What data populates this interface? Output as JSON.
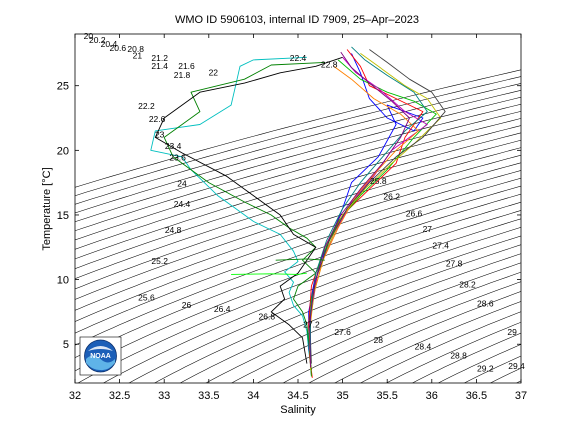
{
  "chart_data": {
    "type": "line",
    "title": "WMO ID 5906103, internal ID 7909, 25–Apr–2023",
    "xlabel": "Salinity",
    "ylabel": "Temperature [°C]",
    "xlim": [
      32,
      37
    ],
    "ylim": [
      2,
      29
    ],
    "xticks": [
      32,
      32.5,
      33,
      33.5,
      34,
      34.5,
      35,
      35.5,
      36,
      36.5,
      37
    ],
    "xtick_labels": [
      "32",
      "32.5",
      "33",
      "33.5",
      "34",
      "34.5",
      "35",
      "35.5",
      "36",
      "36.5",
      "37"
    ],
    "yticks": [
      5,
      10,
      15,
      20,
      25
    ],
    "ytick_labels": [
      "5",
      "10",
      "15",
      "20",
      "25"
    ],
    "grid": false,
    "density_contours": {
      "levels": [
        20,
        20.2,
        20.4,
        20.6,
        20.8,
        21,
        21.2,
        21.4,
        21.6,
        21.8,
        22,
        22.2,
        22.4,
        22.6,
        22.8,
        23,
        23.2,
        23.4,
        23.6,
        23.8,
        24,
        24.2,
        24.4,
        24.6,
        24.8,
        25,
        25.2,
        25.4,
        25.6,
        25.8,
        26,
        26.2,
        26.4,
        26.6,
        26.8,
        27,
        27.2,
        27.4,
        27.6,
        27.8,
        28,
        28.2,
        28.4,
        28.6,
        28.8,
        29,
        29.2,
        29.4
      ],
      "labels": [
        {
          "text": "20",
          "s": 32.15,
          "t": 28.6
        },
        {
          "text": "20.2",
          "s": 32.25,
          "t": 28.3
        },
        {
          "text": "20.4",
          "s": 32.38,
          "t": 28.0
        },
        {
          "text": "20.6",
          "s": 32.48,
          "t": 27.7
        },
        {
          "text": "20.8",
          "s": 32.68,
          "t": 27.6
        },
        {
          "text": "21",
          "s": 32.7,
          "t": 27.1
        },
        {
          "text": "21.2",
          "s": 32.95,
          "t": 26.9
        },
        {
          "text": "21.4",
          "s": 32.95,
          "t": 26.3
        },
        {
          "text": "21.6",
          "s": 33.25,
          "t": 26.3
        },
        {
          "text": "21.8",
          "s": 33.2,
          "t": 25.6
        },
        {
          "text": "22",
          "s": 33.55,
          "t": 25.8
        },
        {
          "text": "22.4",
          "s": 34.5,
          "t": 26.9
        },
        {
          "text": "22.8",
          "s": 34.85,
          "t": 26.4
        },
        {
          "text": "22.2",
          "s": 32.8,
          "t": 23.2
        },
        {
          "text": "22.6",
          "s": 32.92,
          "t": 22.2
        },
        {
          "text": "23",
          "s": 32.95,
          "t": 21.0
        },
        {
          "text": "23.4",
          "s": 33.1,
          "t": 20.1
        },
        {
          "text": "23.6",
          "s": 33.15,
          "t": 19.2
        },
        {
          "text": "24",
          "s": 33.2,
          "t": 17.2
        },
        {
          "text": "24.4",
          "s": 33.2,
          "t": 15.6
        },
        {
          "text": "24.8",
          "s": 33.1,
          "t": 13.6
        },
        {
          "text": "25.2",
          "s": 32.95,
          "t": 11.2
        },
        {
          "text": "25.6",
          "s": 32.8,
          "t": 8.4
        },
        {
          "text": "26",
          "s": 33.25,
          "t": 7.8
        },
        {
          "text": "26.4",
          "s": 33.65,
          "t": 7.5
        },
        {
          "text": "26.8",
          "s": 34.15,
          "t": 6.9
        },
        {
          "text": "27.2",
          "s": 34.65,
          "t": 6.3
        },
        {
          "text": "27.6",
          "s": 35.0,
          "t": 5.7
        },
        {
          "text": "28",
          "s": 35.4,
          "t": 5.1
        },
        {
          "text": "28.4",
          "s": 35.9,
          "t": 4.6
        },
        {
          "text": "28.8",
          "s": 36.3,
          "t": 3.9
        },
        {
          "text": "29.2",
          "s": 36.6,
          "t": 2.9
        },
        {
          "text": "29.4",
          "s": 36.95,
          "t": 3.1
        },
        {
          "text": "29",
          "s": 36.9,
          "t": 5.7
        },
        {
          "text": "28.6",
          "s": 36.6,
          "t": 7.9
        },
        {
          "text": "28.2",
          "s": 36.4,
          "t": 9.4
        },
        {
          "text": "27.8",
          "s": 36.25,
          "t": 11.0
        },
        {
          "text": "27.4",
          "s": 36.1,
          "t": 12.4
        },
        {
          "text": "27",
          "s": 35.95,
          "t": 13.7
        },
        {
          "text": "26.6",
          "s": 35.8,
          "t": 14.9
        },
        {
          "text": "26.2",
          "s": 35.55,
          "t": 16.2
        },
        {
          "text": "25.8",
          "s": 35.4,
          "t": 17.4
        }
      ]
    },
    "series": [
      {
        "color": "#00bfbf",
        "points": [
          [
            34.6,
            27.2
          ],
          [
            34.0,
            27.0
          ],
          [
            33.85,
            26.5
          ],
          [
            33.8,
            25.0
          ],
          [
            33.75,
            23.5
          ],
          [
            33.4,
            22.0
          ],
          [
            32.9,
            21.5
          ],
          [
            32.85,
            20.0
          ],
          [
            33.2,
            19.5
          ],
          [
            33.3,
            18.5
          ],
          [
            33.6,
            16.5
          ],
          [
            33.8,
            15.5
          ],
          [
            34.0,
            14.5
          ],
          [
            34.3,
            13.5
          ],
          [
            34.45,
            12.2
          ],
          [
            34.5,
            11.4
          ],
          [
            34.35,
            10.6
          ],
          [
            34.45,
            9.8
          ],
          [
            34.4,
            9.0
          ],
          [
            34.45,
            8.0
          ],
          [
            34.55,
            7.2
          ],
          [
            34.6,
            6.0
          ],
          [
            34.62,
            4.5
          ],
          [
            34.65,
            3.0
          ]
        ]
      },
      {
        "color": "#008000",
        "points": [
          [
            34.8,
            26.8
          ],
          [
            34.2,
            26.6
          ],
          [
            33.9,
            25.5
          ],
          [
            33.3,
            24.5
          ],
          [
            33.4,
            23.0
          ],
          [
            33.0,
            21.0
          ],
          [
            33.1,
            19.5
          ],
          [
            33.5,
            17.5
          ],
          [
            33.9,
            16.0
          ],
          [
            34.2,
            15.0
          ],
          [
            34.4,
            14.0
          ],
          [
            34.6,
            13.2
          ],
          [
            34.7,
            12.5
          ],
          [
            34.55,
            11.5
          ],
          [
            34.7,
            10.5
          ],
          [
            34.5,
            9.5
          ],
          [
            34.45,
            8.5
          ],
          [
            34.55,
            7.5
          ],
          [
            34.6,
            6.5
          ],
          [
            34.62,
            5.0
          ],
          [
            34.65,
            3.0
          ]
        ]
      },
      {
        "color": "#000000",
        "points": [
          [
            35.0,
            27.2
          ],
          [
            34.7,
            26.5
          ],
          [
            34.3,
            26.0
          ],
          [
            33.9,
            25.2
          ],
          [
            33.4,
            24.5
          ],
          [
            33.0,
            22.5
          ],
          [
            32.9,
            21.0
          ],
          [
            33.2,
            19.8
          ],
          [
            33.7,
            18.0
          ],
          [
            34.0,
            16.5
          ],
          [
            34.3,
            15.0
          ],
          [
            34.45,
            13.5
          ],
          [
            34.7,
            12.5
          ],
          [
            34.6,
            11.5
          ],
          [
            34.5,
            10.5
          ],
          [
            34.3,
            9.5
          ],
          [
            34.35,
            8.5
          ],
          [
            34.2,
            7.5
          ],
          [
            34.4,
            6.5
          ],
          [
            34.55,
            5.5
          ],
          [
            34.6,
            3.5
          ]
        ]
      },
      {
        "color": "#0000ff",
        "points": [
          [
            35.1,
            27.5
          ],
          [
            35.2,
            26.0
          ],
          [
            35.3,
            24.0
          ],
          [
            35.5,
            22.5
          ],
          [
            35.8,
            21.5
          ],
          [
            35.9,
            22.5
          ],
          [
            35.5,
            23.5
          ],
          [
            35.6,
            22.0
          ],
          [
            35.4,
            19.5
          ],
          [
            35.1,
            17.5
          ],
          [
            35.0,
            15.5
          ],
          [
            34.85,
            13.0
          ],
          [
            34.7,
            10.5
          ],
          [
            34.62,
            7.5
          ],
          [
            34.62,
            5.0
          ],
          [
            34.65,
            2.6
          ]
        ]
      },
      {
        "color": "#ff0000",
        "points": [
          [
            35.05,
            27.8
          ],
          [
            35.2,
            26.5
          ],
          [
            35.3,
            25.0
          ],
          [
            35.6,
            24.0
          ],
          [
            35.9,
            23.0
          ],
          [
            35.7,
            21.0
          ],
          [
            35.6,
            19.0
          ],
          [
            35.3,
            17.0
          ],
          [
            35.0,
            15.0
          ],
          [
            34.8,
            12.5
          ],
          [
            34.65,
            9.5
          ],
          [
            34.62,
            6.5
          ],
          [
            34.63,
            4.0
          ],
          [
            34.66,
            2.4
          ]
        ]
      },
      {
        "color": "#00bf00",
        "points": [
          [
            34.95,
            27.0
          ],
          [
            35.2,
            25.5
          ],
          [
            35.5,
            24.5
          ],
          [
            35.8,
            23.8
          ],
          [
            36.05,
            22.8
          ],
          [
            35.8,
            21.0
          ],
          [
            35.5,
            18.5
          ],
          [
            35.2,
            16.5
          ],
          [
            34.95,
            14.5
          ],
          [
            34.75,
            11.5
          ],
          [
            34.65,
            8.5
          ],
          [
            34.62,
            5.5
          ],
          [
            34.65,
            2.5
          ]
        ]
      },
      {
        "color": "#bf00bf",
        "points": [
          [
            35.0,
            27.2
          ],
          [
            35.15,
            26.0
          ],
          [
            35.4,
            24.8
          ],
          [
            35.7,
            23.0
          ],
          [
            35.95,
            22.0
          ],
          [
            35.55,
            20.0
          ],
          [
            35.35,
            18.0
          ],
          [
            35.1,
            16.0
          ],
          [
            34.9,
            13.5
          ],
          [
            34.72,
            10.5
          ],
          [
            34.64,
            7.0
          ],
          [
            34.63,
            4.5
          ]
        ]
      },
      {
        "color": "#bfbf00",
        "points": [
          [
            35.2,
            27.5
          ],
          [
            35.4,
            26.5
          ],
          [
            35.7,
            25.0
          ],
          [
            35.95,
            24.0
          ],
          [
            36.1,
            22.5
          ],
          [
            35.8,
            20.5
          ],
          [
            35.55,
            19.0
          ],
          [
            35.25,
            17.0
          ],
          [
            35.0,
            15.0
          ],
          [
            34.8,
            12.0
          ],
          [
            34.68,
            9.0
          ],
          [
            34.63,
            6.0
          ],
          [
            34.64,
            3.0
          ]
        ]
      },
      {
        "color": "#ff8000",
        "points": [
          [
            34.9,
            26.5
          ],
          [
            35.1,
            25.5
          ],
          [
            35.35,
            24.0
          ],
          [
            35.65,
            22.8
          ],
          [
            35.85,
            21.5
          ],
          [
            35.6,
            20.0
          ],
          [
            35.4,
            18.5
          ],
          [
            35.15,
            16.5
          ],
          [
            34.95,
            14.0
          ],
          [
            34.78,
            11.5
          ],
          [
            34.66,
            8.5
          ],
          [
            34.63,
            5.5
          ]
        ]
      },
      {
        "color": "#404040",
        "points": [
          [
            35.3,
            27.8
          ],
          [
            35.5,
            26.8
          ],
          [
            35.75,
            25.5
          ],
          [
            36.0,
            24.5
          ],
          [
            36.15,
            23.0
          ],
          [
            35.9,
            21.0
          ],
          [
            35.6,
            19.5
          ],
          [
            35.3,
            17.5
          ],
          [
            35.05,
            15.5
          ],
          [
            34.85,
            13.0
          ],
          [
            34.7,
            10.0
          ],
          [
            34.63,
            7.0
          ],
          [
            34.65,
            3.5
          ]
        ]
      },
      {
        "color": "#008080",
        "points": [
          [
            35.1,
            28.0
          ],
          [
            35.25,
            27.0
          ],
          [
            35.5,
            25.8
          ],
          [
            35.8,
            24.5
          ],
          [
            35.95,
            23.0
          ],
          [
            35.7,
            21.5
          ],
          [
            35.45,
            19.5
          ],
          [
            35.2,
            17.5
          ],
          [
            35.0,
            15.5
          ],
          [
            34.82,
            13.0
          ],
          [
            34.7,
            10.5
          ],
          [
            34.64,
            7.5
          ],
          [
            34.64,
            4.0
          ]
        ]
      },
      {
        "color": "#800080",
        "points": [
          [
            34.98,
            27.6
          ],
          [
            35.1,
            26.4
          ],
          [
            35.3,
            25.2
          ],
          [
            35.55,
            23.8
          ],
          [
            35.75,
            22.5
          ],
          [
            35.65,
            21.0
          ],
          [
            35.45,
            19.0
          ],
          [
            35.2,
            17.0
          ],
          [
            34.98,
            15.0
          ],
          [
            34.8,
            12.5
          ],
          [
            34.68,
            9.5
          ],
          [
            34.63,
            6.5
          ],
          [
            34.64,
            3.2
          ]
        ]
      },
      {
        "color": "#00ff00",
        "points": [
          [
            33.75,
            10.4
          ],
          [
            34.2,
            10.45
          ],
          [
            34.5,
            10.4
          ],
          [
            34.6,
            10.5
          ]
        ]
      },
      {
        "color": "#008000",
        "points": [
          [
            34.25,
            11.5
          ],
          [
            34.6,
            11.6
          ],
          [
            34.8,
            11.5
          ]
        ]
      }
    ]
  }
}
